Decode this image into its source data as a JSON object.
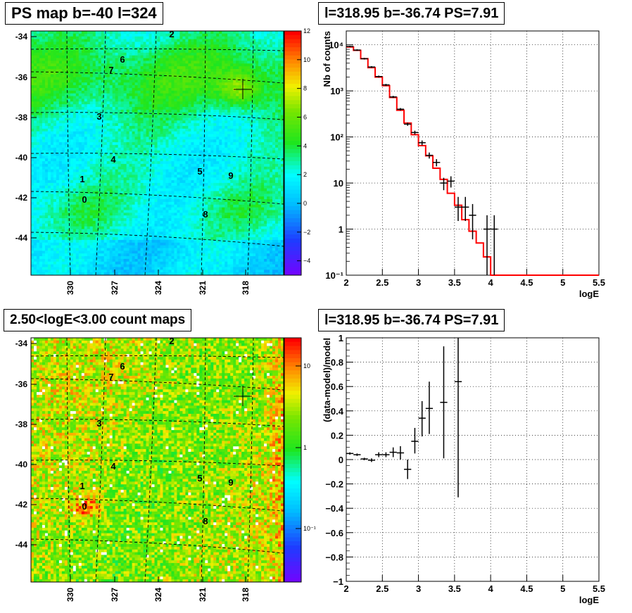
{
  "chart_data": [
    {
      "type": "heatmap",
      "title": "PS map b=-40 l=324",
      "y_ticks": [
        "-34",
        "-36",
        "-38",
        "-40",
        "-42",
        "-44"
      ],
      "x_ticks": [
        "330",
        "327",
        "324",
        "321",
        "318"
      ],
      "colorbar_ticks": [
        "12",
        "10",
        "8",
        "6",
        "4",
        "2",
        "0",
        "−2",
        "−4"
      ],
      "zlim": [
        -5,
        12
      ],
      "source_labels": [
        "0",
        "1",
        "2",
        "3",
        "4",
        "5",
        "6",
        "7",
        "8",
        "9"
      ],
      "marker": "+"
    },
    {
      "type": "line",
      "title": "l=318.95 b=-36.74 PS=7.91",
      "ylabel": "Nb of counts",
      "xlabel": "logE",
      "log_y": true,
      "xlim": [
        2,
        5.5
      ],
      "ylim": [
        0.1,
        20000
      ],
      "x_ticks": [
        "2",
        "2.5",
        "3",
        "3.5",
        "4",
        "4.5",
        "5",
        "5.5"
      ],
      "y_ticks": [
        "10⁴",
        "10³",
        "10²",
        "10",
        "1",
        "10⁻¹"
      ],
      "grid": true,
      "series": [
        {
          "style": "red-step",
          "edges": [
            2.0,
            2.1,
            2.2,
            2.3,
            2.4,
            2.5,
            2.6,
            2.7,
            2.8,
            2.9,
            3.0,
            3.1,
            3.2,
            3.3,
            3.4,
            3.5,
            3.6,
            3.7,
            3.8,
            3.9,
            4.0,
            4.1,
            4.2,
            4.3,
            4.4,
            4.5,
            4.6,
            4.7,
            4.8,
            4.9,
            5.0,
            5.1,
            5.2,
            5.3,
            5.4,
            5.5
          ],
          "values": [
            9000,
            7600,
            5000,
            3200,
            2000,
            1300,
            720,
            380,
            200,
            112,
            65,
            39,
            21,
            12,
            6,
            3.3,
            1.6,
            0.9,
            0.5,
            0.25,
            0.1,
            0.1,
            0.1,
            0.1,
            0.1,
            0.1,
            0.1,
            0.1,
            0.1,
            0.1,
            0.1,
            0.1,
            0.1,
            0.1,
            0.1
          ]
        },
        {
          "style": "black-points",
          "points": [
            {
              "x": 2.05,
              "y": 9200,
              "lo": 8900,
              "hi": 9500
            },
            {
              "x": 2.15,
              "y": 7700,
              "lo": 7400,
              "hi": 8000
            },
            {
              "x": 2.25,
              "y": 5000,
              "lo": 4800,
              "hi": 5200
            },
            {
              "x": 2.35,
              "y": 3300,
              "lo": 3150,
              "hi": 3450
            },
            {
              "x": 2.45,
              "y": 2050,
              "lo": 1950,
              "hi": 2150
            },
            {
              "x": 2.55,
              "y": 1350,
              "lo": 1280,
              "hi": 1420
            },
            {
              "x": 2.65,
              "y": 740,
              "lo": 700,
              "hi": 780
            },
            {
              "x": 2.75,
              "y": 400,
              "lo": 375,
              "hi": 425
            },
            {
              "x": 2.85,
              "y": 190,
              "lo": 175,
              "hi": 205
            },
            {
              "x": 2.95,
              "y": 125,
              "lo": 113,
              "hi": 137
            },
            {
              "x": 3.05,
              "y": 75,
              "lo": 66,
              "hi": 84
            },
            {
              "x": 3.15,
              "y": 40,
              "lo": 34,
              "hi": 46
            },
            {
              "x": 3.25,
              "y": 28,
              "lo": 23,
              "hi": 33
            },
            {
              "x": 3.35,
              "y": 10,
              "lo": 7,
              "hi": 13
            },
            {
              "x": 3.45,
              "y": 11,
              "lo": 8,
              "hi": 14
            },
            {
              "x": 3.55,
              "y": 3,
              "lo": 1.5,
              "hi": 5
            },
            {
              "x": 3.65,
              "y": 3,
              "lo": 1.5,
              "hi": 5
            },
            {
              "x": 3.75,
              "y": 2,
              "lo": 0.6,
              "hi": 3.5
            },
            {
              "x": 3.95,
              "y": 1,
              "lo": 0.1,
              "hi": 2
            },
            {
              "x": 4.05,
              "y": 1,
              "lo": 0.1,
              "hi": 2
            }
          ]
        }
      ]
    },
    {
      "type": "heatmap",
      "title": "2.50<logE<3.00 count maps",
      "y_ticks": [
        "-34",
        "-36",
        "-38",
        "-40",
        "-42",
        "-44"
      ],
      "x_ticks": [
        "330",
        "327",
        "324",
        "321",
        "318"
      ],
      "colorbar_ticks": [
        "10",
        "1",
        "10⁻¹"
      ],
      "log_z": true,
      "source_labels": [
        "0",
        "1",
        "2",
        "3",
        "4",
        "5",
        "6",
        "7",
        "8",
        "9"
      ],
      "marker": "+"
    },
    {
      "type": "scatter",
      "title": "l=318.95 b=-36.74 PS=7.91",
      "ylabel": "(data-model)/model",
      "xlabel": "logE",
      "xlim": [
        2,
        5.5
      ],
      "ylim": [
        -1,
        1
      ],
      "x_ticks": [
        "2",
        "2.5",
        "3",
        "3.5",
        "4",
        "4.5",
        "5",
        "5.5"
      ],
      "y_ticks": [
        "1",
        "0.8",
        "0.6",
        "0.4",
        "0.2",
        "0",
        "−0.2",
        "−0.4",
        "−0.6",
        "−0.8",
        "−1"
      ],
      "grid": true,
      "points": [
        {
          "x": 2.05,
          "y": 0.05,
          "lo": 0.04,
          "hi": 0.06
        },
        {
          "x": 2.15,
          "y": 0.04,
          "lo": 0.03,
          "hi": 0.05
        },
        {
          "x": 2.25,
          "y": 0.005,
          "lo": -0.005,
          "hi": 0.015
        },
        {
          "x": 2.35,
          "y": -0.005,
          "lo": -0.02,
          "hi": 0.01
        },
        {
          "x": 2.45,
          "y": 0.04,
          "lo": 0.02,
          "hi": 0.06
        },
        {
          "x": 2.55,
          "y": 0.04,
          "lo": 0.02,
          "hi": 0.06
        },
        {
          "x": 2.65,
          "y": 0.06,
          "lo": 0.02,
          "hi": 0.1
        },
        {
          "x": 2.75,
          "y": 0.055,
          "lo": 0.0,
          "hi": 0.11
        },
        {
          "x": 2.85,
          "y": -0.08,
          "lo": -0.16,
          "hi": 0.0
        },
        {
          "x": 2.95,
          "y": 0.15,
          "lo": 0.05,
          "hi": 0.26
        },
        {
          "x": 3.05,
          "y": 0.34,
          "lo": 0.19,
          "hi": 0.48
        },
        {
          "x": 3.15,
          "y": 0.42,
          "lo": 0.21,
          "hi": 0.64
        },
        {
          "x": 3.35,
          "y": 0.47,
          "lo": 0.01,
          "hi": 0.93
        },
        {
          "x": 3.55,
          "y": 0.64,
          "lo": -0.31,
          "hi": 1.0
        }
      ]
    }
  ]
}
